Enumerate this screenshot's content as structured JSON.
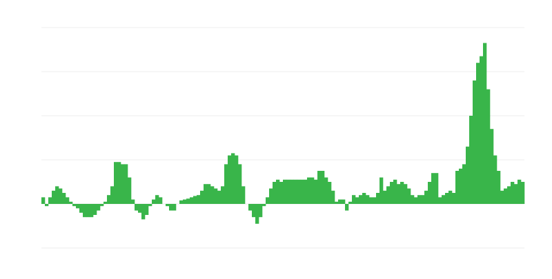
{
  "chart_data": {
    "type": "bar",
    "color": "#39b54a",
    "grid": true,
    "ylim": [
      -1,
      4
    ],
    "yticks": [
      -1,
      0,
      1,
      2,
      3,
      4
    ],
    "values": [
      0.15,
      -0.05,
      0.15,
      0.3,
      0.4,
      0.35,
      0.25,
      0.15,
      0.05,
      -0.05,
      -0.1,
      -0.2,
      -0.3,
      -0.3,
      -0.3,
      -0.25,
      -0.15,
      -0.05,
      0.05,
      0.2,
      0.4,
      0.95,
      0.95,
      0.9,
      0.9,
      0.6,
      0.1,
      -0.15,
      -0.2,
      -0.35,
      -0.25,
      -0.05,
      0.1,
      0.2,
      0.15,
      0,
      -0.05,
      -0.15,
      -0.15,
      0,
      0.08,
      0.1,
      0.12,
      0.15,
      0.18,
      0.2,
      0.3,
      0.45,
      0.45,
      0.4,
      0.35,
      0.3,
      0.4,
      0.9,
      1.1,
      1.15,
      1.1,
      0.9,
      0.4,
      0,
      -0.15,
      -0.3,
      -0.45,
      -0.3,
      -0.05,
      0.15,
      0.35,
      0.5,
      0.55,
      0.5,
      0.55,
      0.55,
      0.55,
      0.55,
      0.55,
      0.55,
      0.55,
      0.6,
      0.6,
      0.55,
      0.75,
      0.75,
      0.6,
      0.5,
      0.3,
      0.05,
      0.1,
      0.1,
      -0.15,
      0.05,
      0.2,
      0.15,
      0.2,
      0.25,
      0.2,
      0.15,
      0.15,
      0.25,
      0.6,
      0.3,
      0.4,
      0.5,
      0.55,
      0.45,
      0.5,
      0.45,
      0.35,
      0.2,
      0.15,
      0.2,
      0.2,
      0.3,
      0.5,
      0.7,
      0.7,
      0.15,
      0.2,
      0.25,
      0.3,
      0.25,
      0.75,
      0.8,
      0.9,
      1.3,
      2.0,
      2.8,
      3.2,
      3.35,
      3.65,
      2.6,
      1.7,
      1.1,
      0.75,
      0.3,
      0.35,
      0.4,
      0.5,
      0.45,
      0.55,
      0.5
    ]
  }
}
